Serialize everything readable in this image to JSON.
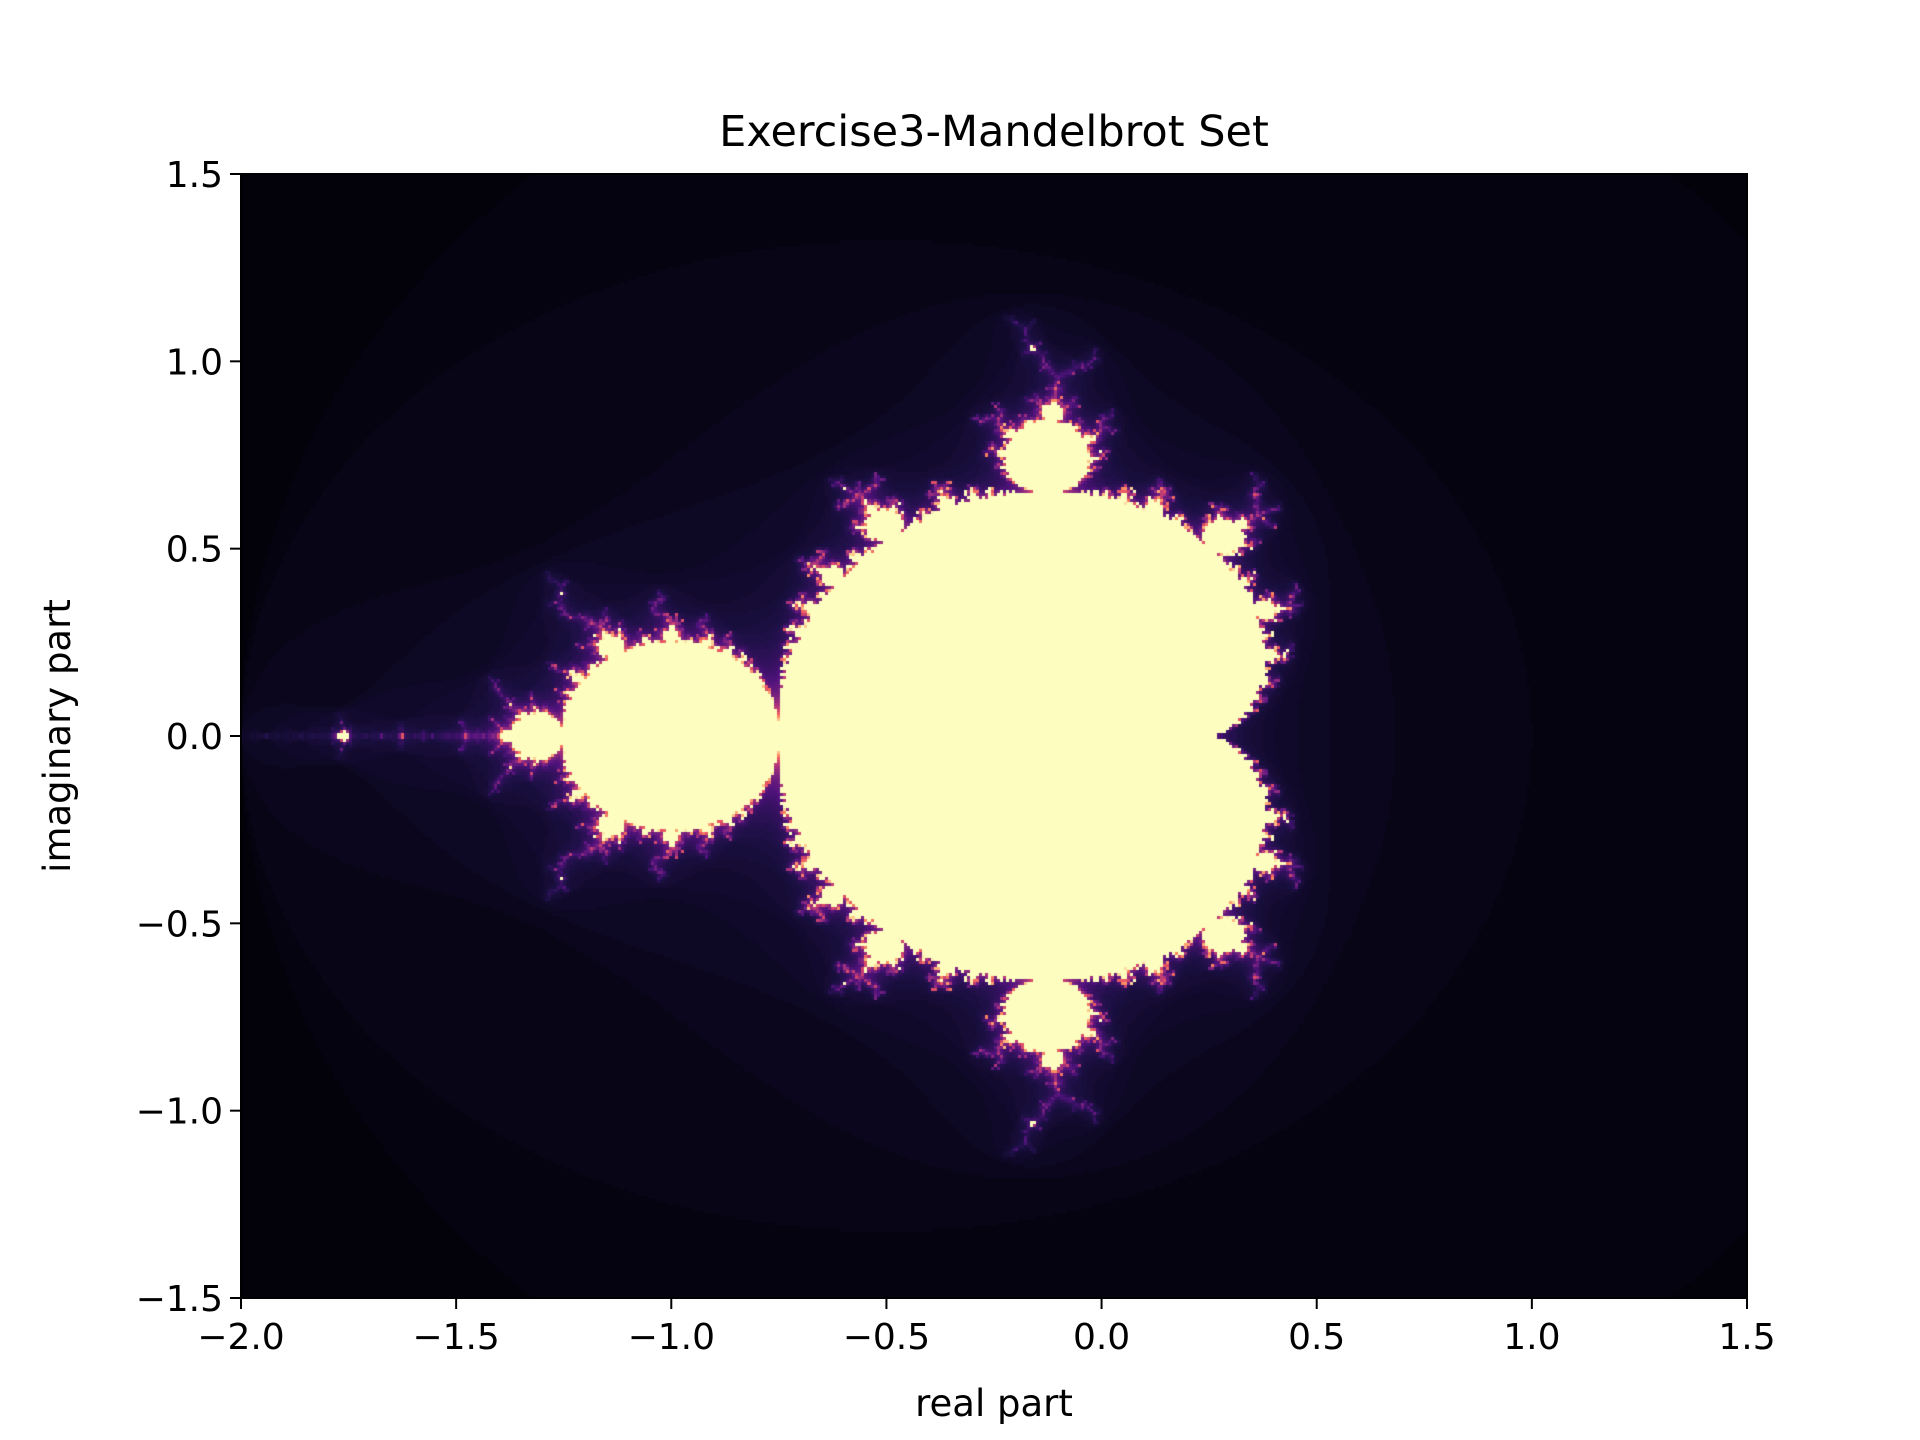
{
  "chart_data": {
    "type": "heatmap",
    "title": "Exercise3-Mandelbrot Set",
    "xlabel": "real part",
    "ylabel": "imaginary part",
    "xlim": [
      -2.0,
      1.5
    ],
    "ylim": [
      -1.5,
      1.5
    ],
    "xticks": [
      -2.0,
      -1.5,
      -1.0,
      -0.5,
      0.0,
      0.5,
      1.0,
      1.5
    ],
    "xtick_labels": [
      "−2.0",
      "−1.5",
      "−1.0",
      "−0.5",
      "0.0",
      "0.5",
      "1.0",
      "1.5"
    ],
    "yticks": [
      1.5,
      1.0,
      0.5,
      0.0,
      -0.5,
      -1.0,
      -1.5
    ],
    "ytick_labels": [
      "1.5",
      "1.0",
      "0.5",
      "0.0",
      "−0.5",
      "−1.0",
      "−1.5"
    ],
    "colormap": "magma",
    "colors": {
      "inside": "#fcfdbf",
      "outside": "#000004",
      "edge": "#b73779"
    },
    "grid": false,
    "legend": false
  }
}
